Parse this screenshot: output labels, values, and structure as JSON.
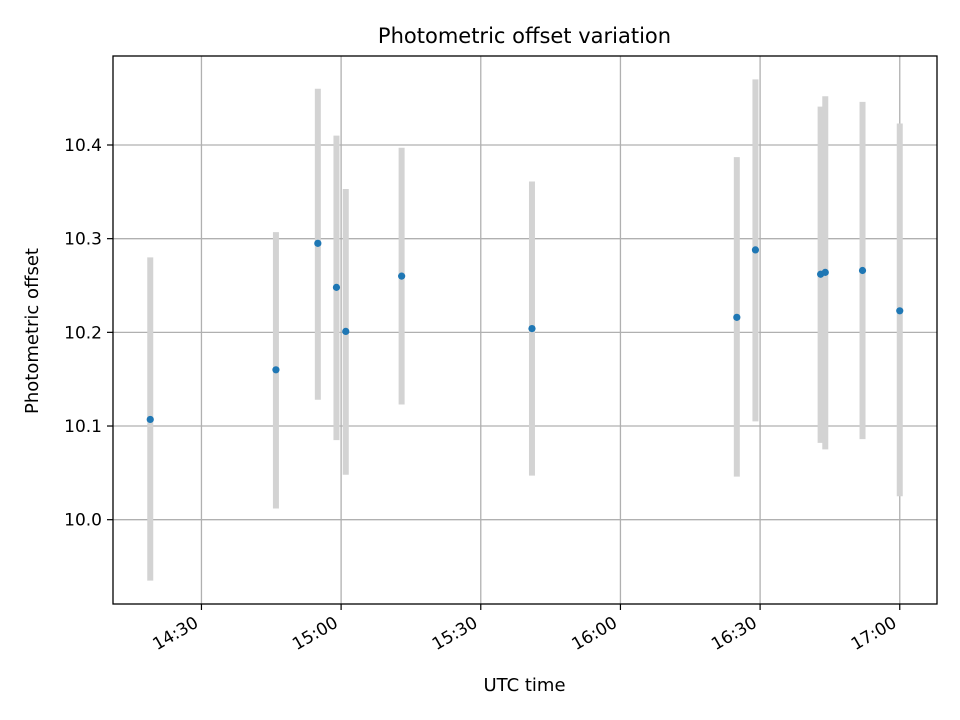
{
  "chart_data": {
    "type": "scatter",
    "title": "Photometric offset variation",
    "xlabel": "UTC time",
    "ylabel": "Photometric offset",
    "x_format": "HH:MM",
    "xlim": [
      "14:11",
      "17:08"
    ],
    "ylim": [
      9.91,
      10.495
    ],
    "grid": true,
    "x_ticks": [
      "14:30",
      "15:00",
      "15:30",
      "16:00",
      "16:30",
      "17:00"
    ],
    "y_ticks": [
      10.0,
      10.1,
      10.2,
      10.3,
      10.4
    ],
    "y_tick_labels": [
      "10.0",
      "10.1",
      "10.2",
      "10.3",
      "10.4"
    ],
    "point_color": "#1f77b4",
    "errorbar_color": "#d3d3d3",
    "points": [
      {
        "x": "14:19",
        "y": 10.107,
        "ylow": 9.935,
        "yhigh": 10.28
      },
      {
        "x": "14:46",
        "y": 10.16,
        "ylow": 10.012,
        "yhigh": 10.307
      },
      {
        "x": "14:55",
        "y": 10.295,
        "ylow": 10.128,
        "yhigh": 10.46
      },
      {
        "x": "14:59",
        "y": 10.248,
        "ylow": 10.085,
        "yhigh": 10.41
      },
      {
        "x": "15:01",
        "y": 10.201,
        "ylow": 10.048,
        "yhigh": 10.353
      },
      {
        "x": "15:13",
        "y": 10.26,
        "ylow": 10.123,
        "yhigh": 10.397
      },
      {
        "x": "15:41",
        "y": 10.204,
        "ylow": 10.047,
        "yhigh": 10.361
      },
      {
        "x": "16:25",
        "y": 10.216,
        "ylow": 10.046,
        "yhigh": 10.387
      },
      {
        "x": "16:29",
        "y": 10.288,
        "ylow": 10.105,
        "yhigh": 10.47
      },
      {
        "x": "16:43",
        "y": 10.262,
        "ylow": 10.082,
        "yhigh": 10.441
      },
      {
        "x": "16:44",
        "y": 10.264,
        "ylow": 10.075,
        "yhigh": 10.452
      },
      {
        "x": "16:52",
        "y": 10.266,
        "ylow": 10.086,
        "yhigh": 10.446
      },
      {
        "x": "17:00",
        "y": 10.223,
        "ylow": 10.025,
        "yhigh": 10.423
      }
    ]
  }
}
